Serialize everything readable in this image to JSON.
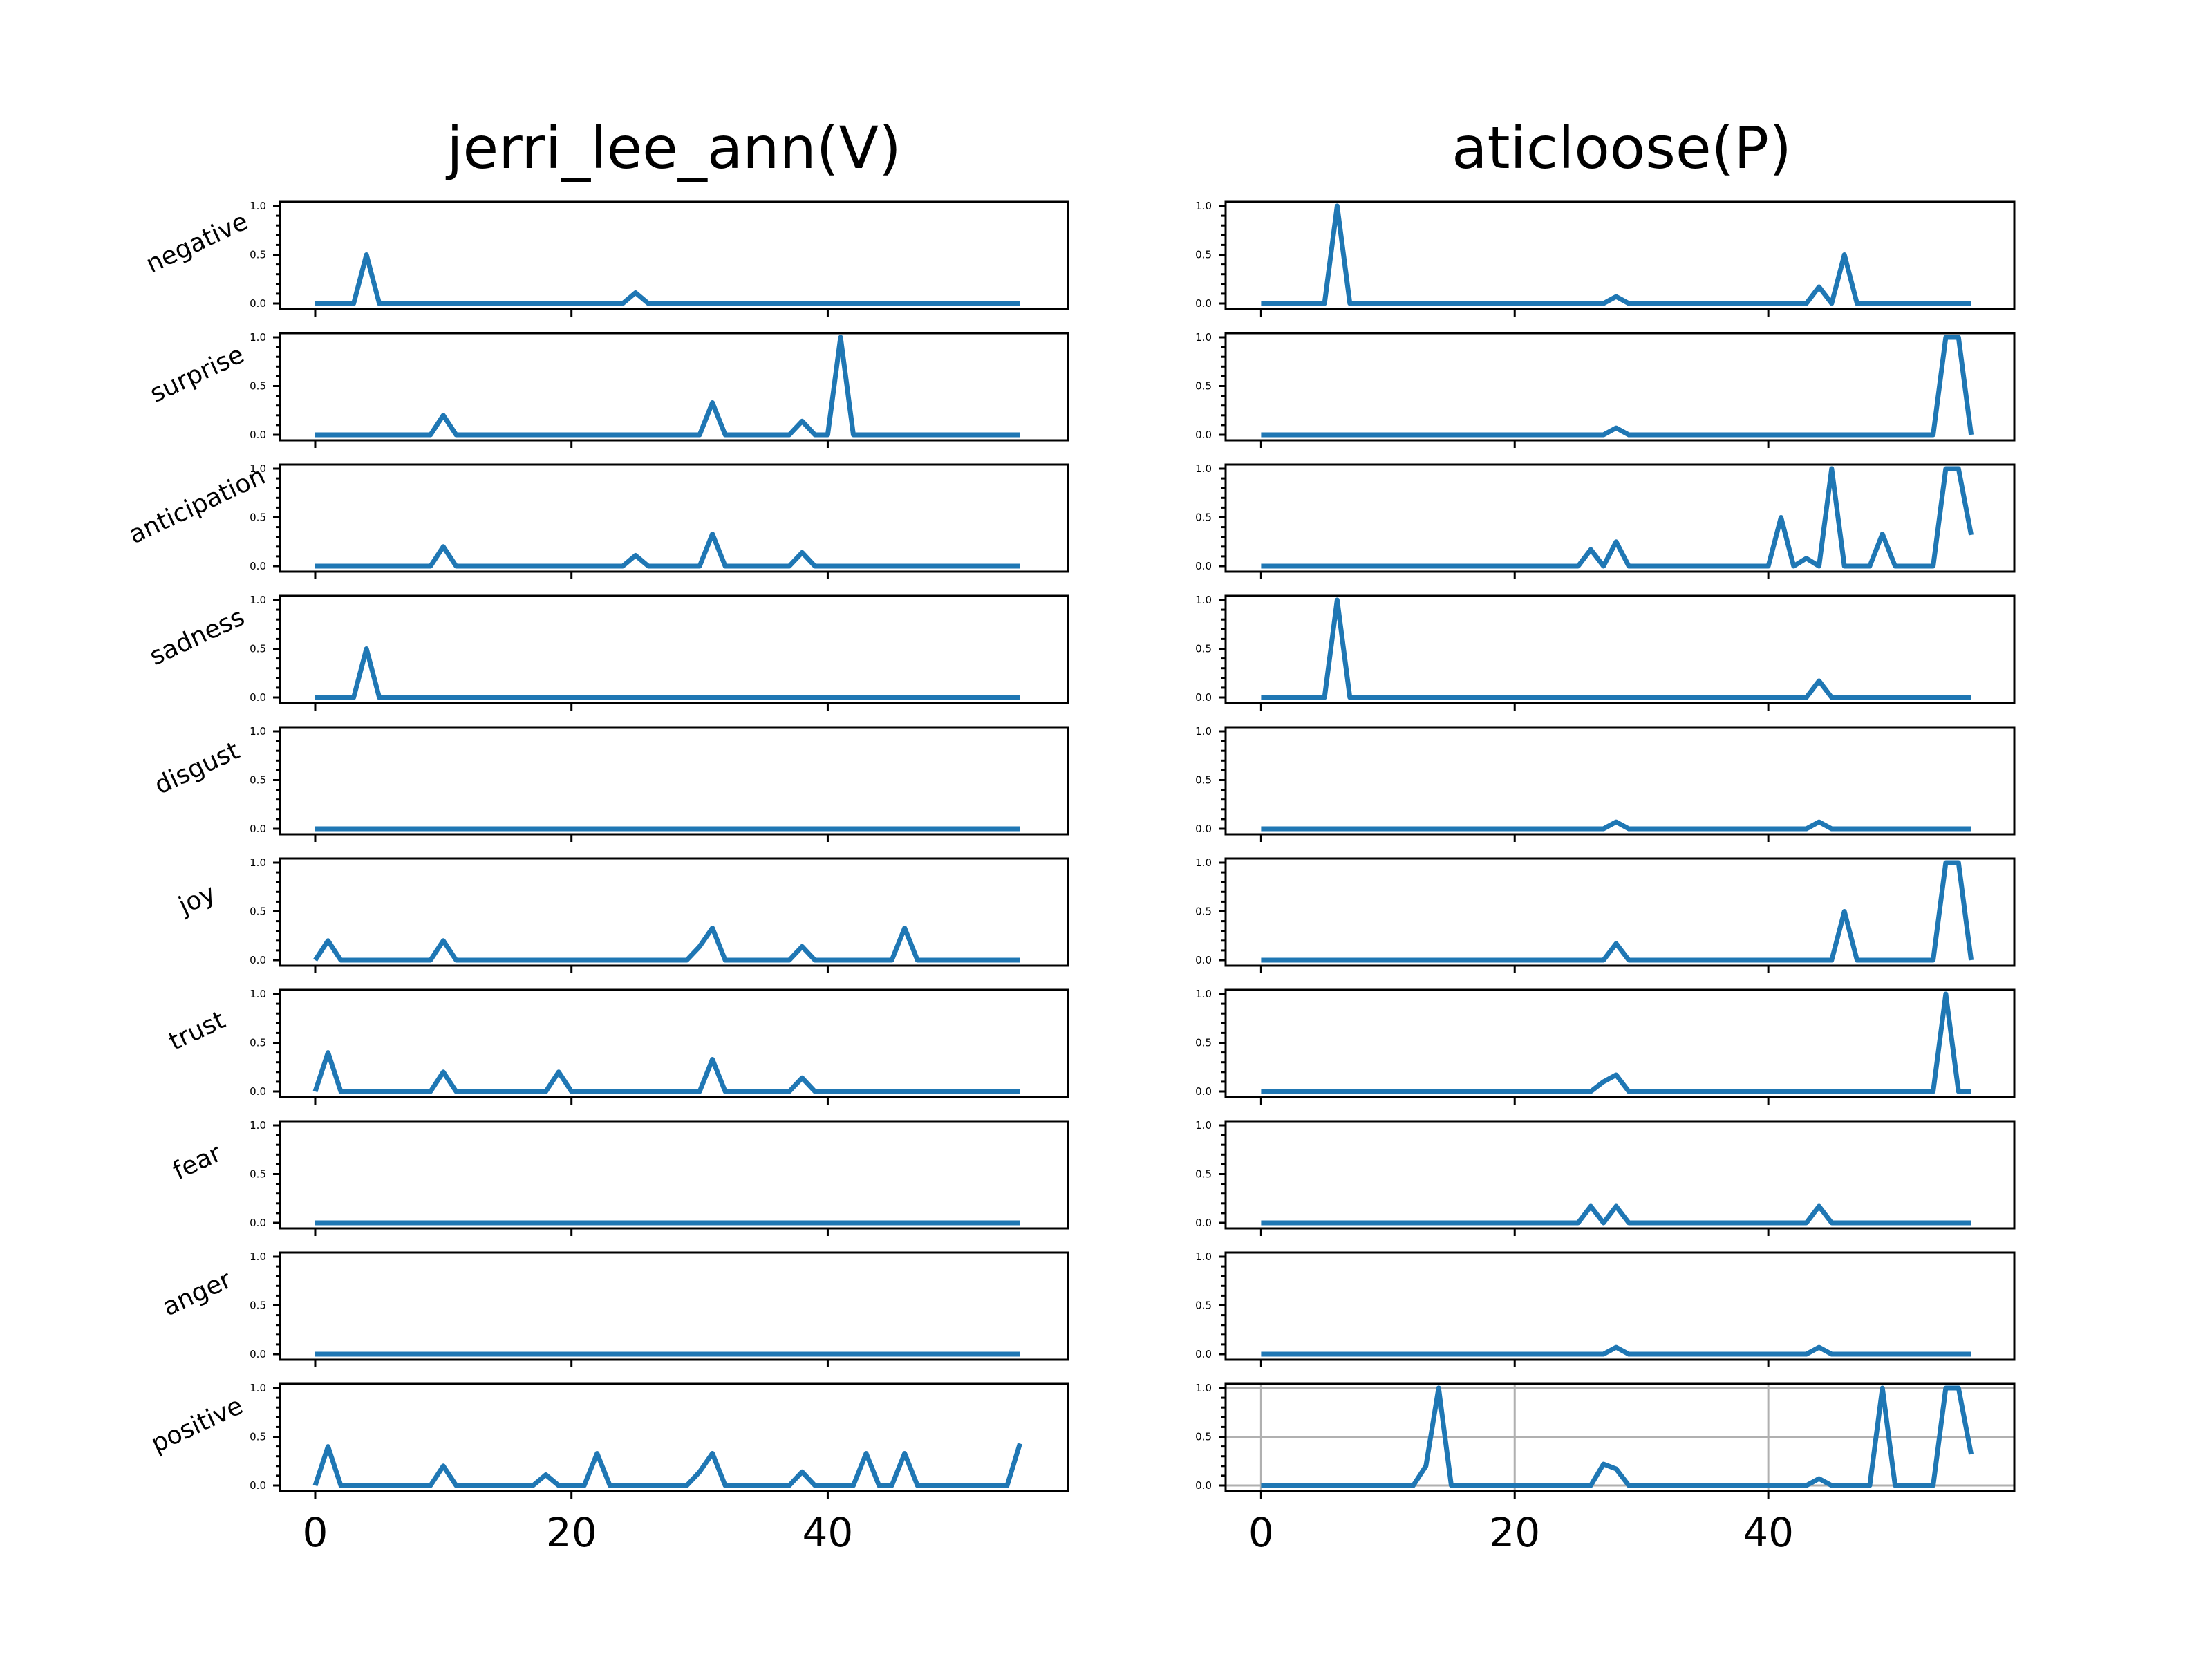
{
  "chart_data": {
    "type": "line",
    "series_color": "#1f77b4",
    "ylim": [
      0,
      1
    ],
    "yticks": [
      "0.0",
      "0.5",
      "1.0"
    ],
    "xticks": [
      "0",
      "20",
      "40"
    ],
    "grid_on_last_right_panel": true,
    "rows": [
      "negative",
      "surprise",
      "anticipation",
      "sadness",
      "disgust",
      "joy",
      "trust",
      "fear",
      "anger",
      "positive"
    ],
    "panels": [
      {
        "title": "jerri_lee_ann(V)",
        "xlim": [
          -2.75,
          58.75
        ],
        "series": {
          "negative": [
            [
              0,
              0
            ],
            [
              3,
              0
            ],
            [
              4,
              0.5
            ],
            [
              5,
              0
            ],
            [
              24,
              0
            ],
            [
              25,
              0.11
            ],
            [
              26,
              0
            ],
            [
              55,
              0
            ]
          ],
          "surprise": [
            [
              0,
              0
            ],
            [
              9,
              0
            ],
            [
              10,
              0.2
            ],
            [
              11,
              0
            ],
            [
              30,
              0
            ],
            [
              31,
              0.33
            ],
            [
              32,
              0
            ],
            [
              37,
              0
            ],
            [
              38,
              0.14
            ],
            [
              39,
              0
            ],
            [
              40,
              0
            ],
            [
              41,
              1.0
            ],
            [
              42,
              0
            ],
            [
              55,
              0
            ]
          ],
          "anticipation": [
            [
              0,
              0
            ],
            [
              9,
              0
            ],
            [
              10,
              0.2
            ],
            [
              11,
              0
            ],
            [
              24,
              0
            ],
            [
              25,
              0.11
            ],
            [
              26,
              0
            ],
            [
              30,
              0
            ],
            [
              31,
              0.33
            ],
            [
              32,
              0
            ],
            [
              37,
              0
            ],
            [
              38,
              0.14
            ],
            [
              39,
              0
            ],
            [
              55,
              0
            ]
          ],
          "sadness": [
            [
              0,
              0
            ],
            [
              3,
              0
            ],
            [
              4,
              0.5
            ],
            [
              5,
              0
            ],
            [
              55,
              0
            ]
          ],
          "disgust": [
            [
              0,
              0
            ],
            [
              55,
              0
            ]
          ],
          "joy": [
            [
              0,
              0
            ],
            [
              1,
              0.2
            ],
            [
              2,
              0
            ],
            [
              9,
              0
            ],
            [
              10,
              0.2
            ],
            [
              11,
              0
            ],
            [
              29,
              0
            ],
            [
              30,
              0.14
            ],
            [
              31,
              0.33
            ],
            [
              32,
              0
            ],
            [
              37,
              0
            ],
            [
              38,
              0.14
            ],
            [
              39,
              0
            ],
            [
              45,
              0
            ],
            [
              46,
              0.33
            ],
            [
              47,
              0
            ],
            [
              55,
              0
            ]
          ],
          "trust": [
            [
              0,
              0
            ],
            [
              1,
              0.4
            ],
            [
              2,
              0
            ],
            [
              9,
              0
            ],
            [
              10,
              0.2
            ],
            [
              11,
              0
            ],
            [
              18,
              0
            ],
            [
              19,
              0.2
            ],
            [
              20,
              0
            ],
            [
              30,
              0
            ],
            [
              31,
              0.33
            ],
            [
              32,
              0
            ],
            [
              37,
              0
            ],
            [
              38,
              0.14
            ],
            [
              39,
              0
            ],
            [
              55,
              0
            ]
          ],
          "fear": [
            [
              0,
              0
            ],
            [
              55,
              0
            ]
          ],
          "anger": [
            [
              0,
              0
            ],
            [
              55,
              0
            ]
          ],
          "positive": [
            [
              0,
              0
            ],
            [
              1,
              0.4
            ],
            [
              2,
              0
            ],
            [
              9,
              0
            ],
            [
              10,
              0.2
            ],
            [
              11,
              0
            ],
            [
              17,
              0
            ],
            [
              18,
              0.11
            ],
            [
              19,
              0
            ],
            [
              21,
              0
            ],
            [
              22,
              0.33
            ],
            [
              23,
              0
            ],
            [
              29,
              0
            ],
            [
              30,
              0.14
            ],
            [
              31,
              0.33
            ],
            [
              32,
              0
            ],
            [
              37,
              0
            ],
            [
              38,
              0.14
            ],
            [
              39,
              0
            ],
            [
              42,
              0
            ],
            [
              43,
              0.33
            ],
            [
              44,
              0
            ],
            [
              45,
              0
            ],
            [
              46,
              0.33
            ],
            [
              47,
              0
            ],
            [
              54,
              0
            ],
            [
              55,
              0.43
            ]
          ]
        }
      },
      {
        "title": "aticloose(P)",
        "xlim": [
          -2.8,
          59.4
        ],
        "series": {
          "negative": [
            [
              0,
              0
            ],
            [
              5,
              0
            ],
            [
              6,
              1.0
            ],
            [
              7,
              0
            ],
            [
              27,
              0
            ],
            [
              28,
              0.07
            ],
            [
              29,
              0
            ],
            [
              43,
              0
            ],
            [
              44,
              0.17
            ],
            [
              45,
              0
            ],
            [
              46,
              0.5
            ],
            [
              47,
              0
            ],
            [
              56,
              0
            ]
          ],
          "surprise": [
            [
              0,
              0
            ],
            [
              27,
              0
            ],
            [
              28,
              0.07
            ],
            [
              29,
              0
            ],
            [
              53,
              0
            ],
            [
              54,
              1.0
            ],
            [
              55,
              1.0
            ],
            [
              56,
              0
            ]
          ],
          "anticipation": [
            [
              0,
              0
            ],
            [
              25,
              0
            ],
            [
              26,
              0.17
            ],
            [
              27,
              0
            ],
            [
              28,
              0.25
            ],
            [
              29,
              0
            ],
            [
              40,
              0
            ],
            [
              41,
              0.5
            ],
            [
              42,
              0
            ],
            [
              43,
              0.08
            ],
            [
              44,
              0
            ],
            [
              45,
              1.0
            ],
            [
              46,
              0
            ],
            [
              48,
              0
            ],
            [
              49,
              0.33
            ],
            [
              50,
              0
            ],
            [
              52,
              0
            ],
            [
              53,
              0
            ],
            [
              54,
              1.0
            ],
            [
              55,
              1.0
            ],
            [
              56,
              0.32
            ]
          ],
          "sadness": [
            [
              0,
              0
            ],
            [
              5,
              0
            ],
            [
              6,
              1.0
            ],
            [
              7,
              0
            ],
            [
              43,
              0
            ],
            [
              44,
              0.17
            ],
            [
              45,
              0
            ],
            [
              56,
              0
            ]
          ],
          "disgust": [
            [
              0,
              0
            ],
            [
              27,
              0
            ],
            [
              28,
              0.07
            ],
            [
              29,
              0
            ],
            [
              43,
              0
            ],
            [
              44,
              0.07
            ],
            [
              45,
              0
            ],
            [
              56,
              0
            ]
          ],
          "joy": [
            [
              0,
              0
            ],
            [
              27,
              0
            ],
            [
              28,
              0.17
            ],
            [
              29,
              0
            ],
            [
              45,
              0
            ],
            [
              46,
              0.5
            ],
            [
              47,
              0
            ],
            [
              53,
              0
            ],
            [
              54,
              1.0
            ],
            [
              55,
              1.0
            ],
            [
              56,
              0
            ]
          ],
          "trust": [
            [
              0,
              0
            ],
            [
              26,
              0
            ],
            [
              27,
              0.1
            ],
            [
              28,
              0.17
            ],
            [
              29,
              0
            ],
            [
              53,
              0
            ],
            [
              54,
              1.0
            ],
            [
              55,
              0
            ],
            [
              56,
              0
            ]
          ],
          "fear": [
            [
              0,
              0
            ],
            [
              25,
              0
            ],
            [
              26,
              0.17
            ],
            [
              27,
              0
            ],
            [
              28,
              0.17
            ],
            [
              29,
              0
            ],
            [
              43,
              0
            ],
            [
              44,
              0.17
            ],
            [
              45,
              0
            ],
            [
              56,
              0
            ]
          ],
          "anger": [
            [
              0,
              0
            ],
            [
              27,
              0
            ],
            [
              28,
              0.07
            ],
            [
              29,
              0
            ],
            [
              43,
              0
            ],
            [
              44,
              0.07
            ],
            [
              45,
              0
            ],
            [
              56,
              0
            ]
          ],
          "positive": [
            [
              0,
              0
            ],
            [
              12,
              0
            ],
            [
              13,
              0.2
            ],
            [
              14,
              1.0
            ],
            [
              15,
              0
            ],
            [
              26,
              0
            ],
            [
              27,
              0.22
            ],
            [
              28,
              0.17
            ],
            [
              29,
              0
            ],
            [
              43,
              0
            ],
            [
              44,
              0.07
            ],
            [
              45,
              0
            ],
            [
              48,
              0
            ],
            [
              49,
              1.0
            ],
            [
              50,
              0
            ],
            [
              53,
              0
            ],
            [
              54,
              1.0
            ],
            [
              55,
              1.0
            ],
            [
              56,
              0.32
            ]
          ]
        }
      }
    ]
  }
}
